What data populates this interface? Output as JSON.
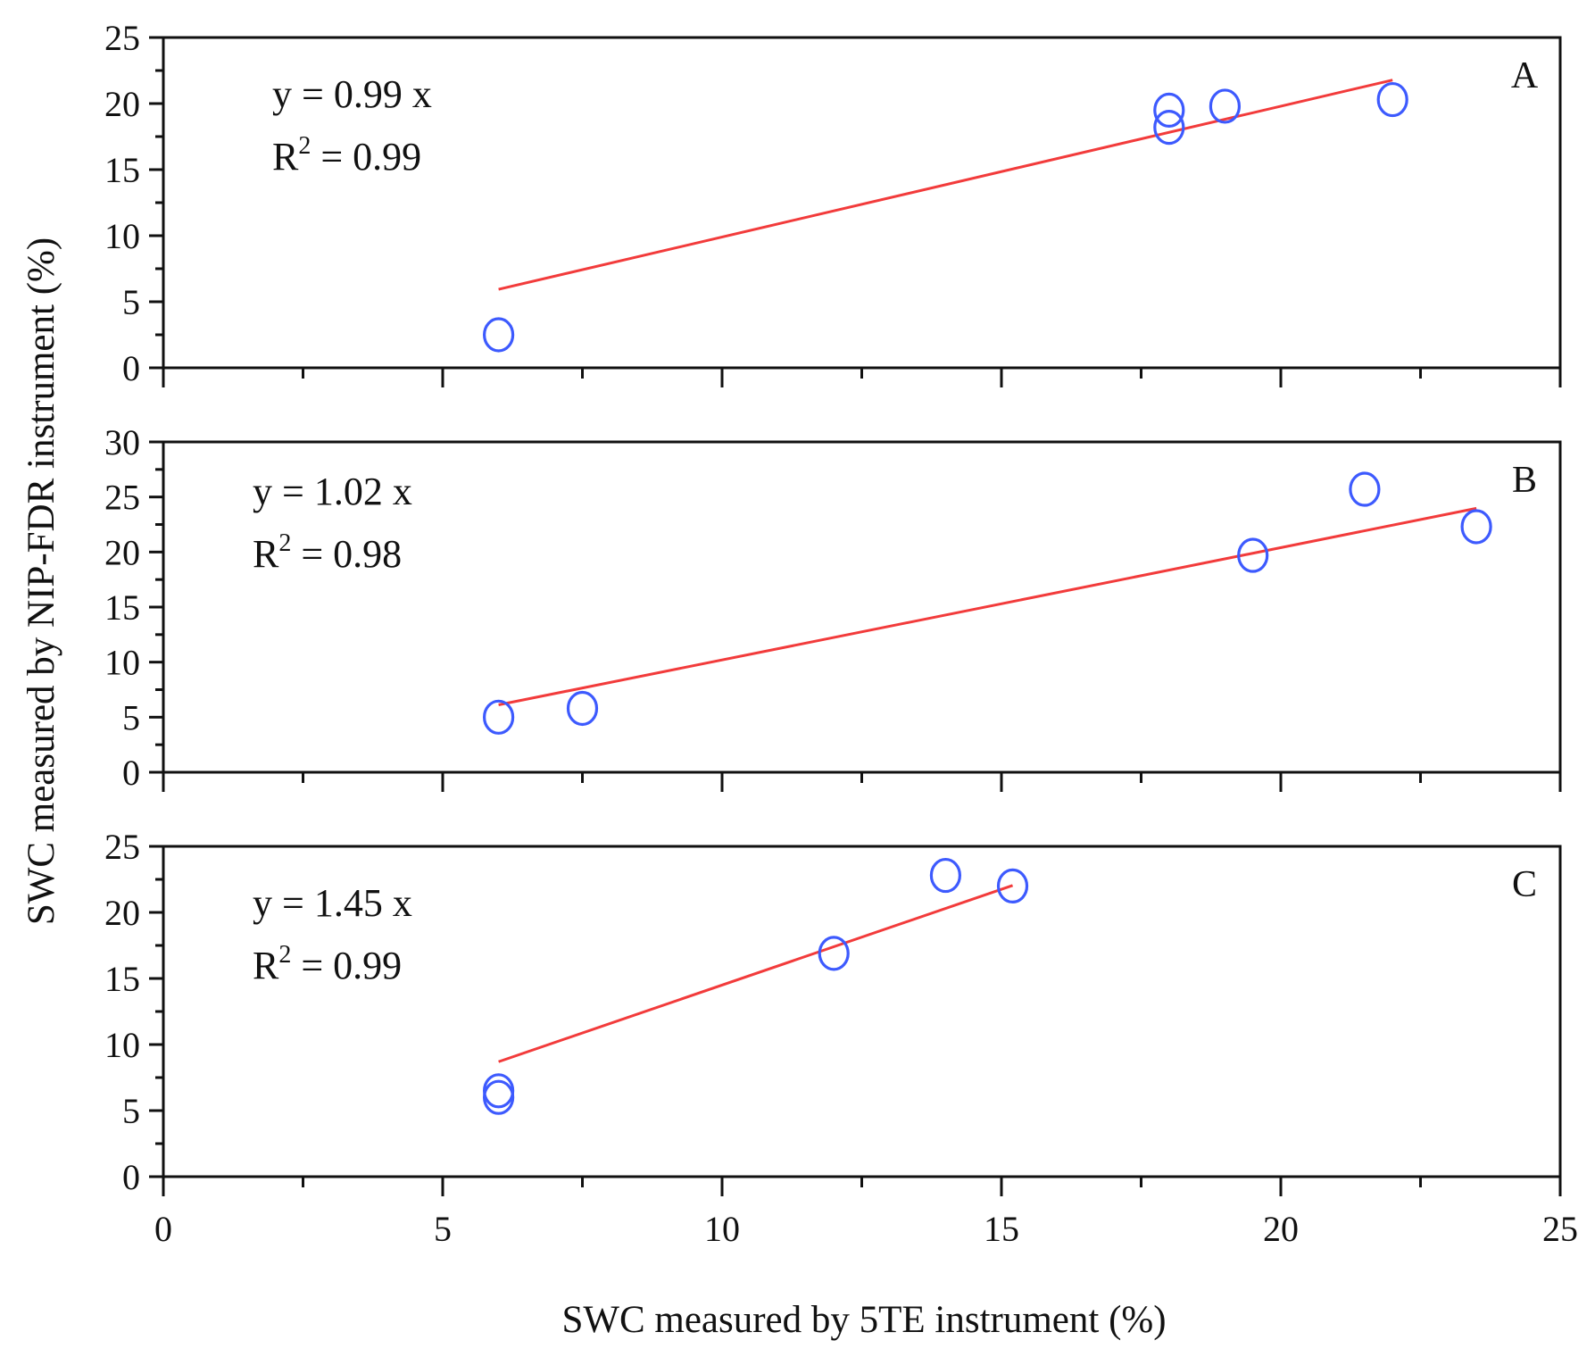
{
  "chart_data": {
    "type": "scatter",
    "xlabel": "SWC measured by 5TE instrument (%)",
    "ylabel": "SWC measured by NIP-FDR instrument (%)",
    "xlim": [
      0,
      25
    ],
    "x_ticks": [
      "0",
      "5",
      "10",
      "15",
      "20",
      "25"
    ],
    "x_major_step": 5,
    "x_minor_step": 2.5,
    "shared_x_axis": true,
    "grid": false,
    "colors": {
      "points": "#3d5afe",
      "fit_line": "#f23b3b",
      "axes": "#111111"
    },
    "panels": [
      {
        "label": "A",
        "equation": "y = 0.99 x",
        "r2": "R² = 0.99",
        "r2_prefix": "R",
        "r2_sup": "2",
        "r2_value": " = 0.99",
        "ylim": [
          0,
          25
        ],
        "y_ticks": [
          "0",
          "5",
          "10",
          "15",
          "20",
          "25"
        ],
        "y_major_step": 5,
        "y_minor_step": 2.5,
        "points": [
          {
            "x": 6.0,
            "y": 2.5
          },
          {
            "x": 18.0,
            "y": 18.2
          },
          {
            "x": 18.0,
            "y": 19.5
          },
          {
            "x": 19.0,
            "y": 19.8
          },
          {
            "x": 22.0,
            "y": 20.3
          }
        ],
        "fit": {
          "slope": 0.99,
          "x_start": 6.0,
          "x_end": 22.0
        }
      },
      {
        "label": "B",
        "equation": "y = 1.02 x",
        "r2": "R² = 0.98",
        "r2_prefix": "R",
        "r2_sup": "2",
        "r2_value": " = 0.98",
        "ylim": [
          0,
          30
        ],
        "y_ticks": [
          "0",
          "5",
          "10",
          "15",
          "20",
          "25",
          "30"
        ],
        "y_major_step": 5,
        "y_minor_step": 2.5,
        "points": [
          {
            "x": 6.0,
            "y": 5.0
          },
          {
            "x": 7.5,
            "y": 5.8
          },
          {
            "x": 19.5,
            "y": 19.7
          },
          {
            "x": 21.5,
            "y": 25.7
          },
          {
            "x": 23.5,
            "y": 22.3
          }
        ],
        "fit": {
          "slope": 1.02,
          "x_start": 6.0,
          "x_end": 23.5
        }
      },
      {
        "label": "C",
        "equation": "y = 1.45 x",
        "r2": "R² = 0.99",
        "r2_prefix": "R",
        "r2_sup": "2",
        "r2_value": " = 0.99",
        "ylim": [
          0,
          25
        ],
        "y_ticks": [
          "0",
          "5",
          "10",
          "15",
          "20",
          "25"
        ],
        "y_major_step": 5,
        "y_minor_step": 2.5,
        "points": [
          {
            "x": 6.0,
            "y": 6.0
          },
          {
            "x": 6.0,
            "y": 6.5
          },
          {
            "x": 12.0,
            "y": 16.9
          },
          {
            "x": 14.0,
            "y": 22.8
          },
          {
            "x": 15.2,
            "y": 22.0
          }
        ],
        "fit": {
          "slope": 1.45,
          "x_start": 6.0,
          "x_end": 15.2
        }
      }
    ]
  }
}
